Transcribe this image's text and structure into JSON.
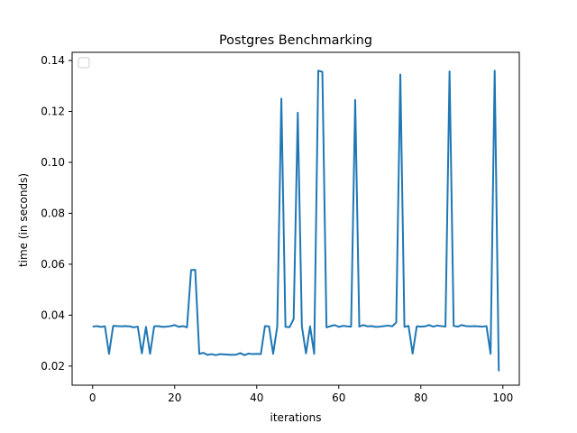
{
  "chart_data": {
    "type": "line",
    "title": "Postgres Benchmarking",
    "xlabel": "iterations",
    "ylabel": "time (in seconds)",
    "xlim": [
      -5,
      104
    ],
    "ylim": [
      0.0125,
      0.1432
    ],
    "x_ticks": [
      0,
      20,
      40,
      60,
      80,
      100
    ],
    "y_ticks": [
      0.02,
      0.04,
      0.06,
      0.08,
      0.1,
      0.12,
      0.14
    ],
    "x_tick_labels": [
      "0",
      "20",
      "40",
      "60",
      "80",
      "100"
    ],
    "y_tick_labels": [
      "0.02",
      "0.04",
      "0.06",
      "0.08",
      "0.10",
      "0.12",
      "0.14"
    ],
    "grid": false,
    "legend": "top-left (empty)",
    "series": [
      {
        "color": "#1f77b4",
        "x": [
          0,
          1,
          2,
          3,
          4,
          5,
          6,
          7,
          8,
          9,
          10,
          11,
          12,
          13,
          14,
          15,
          16,
          17,
          18,
          19,
          20,
          21,
          22,
          23,
          24,
          25,
          26,
          27,
          28,
          29,
          30,
          31,
          32,
          33,
          34,
          35,
          36,
          37,
          38,
          39,
          40,
          41,
          42,
          43,
          44,
          45,
          46,
          47,
          48,
          49,
          50,
          51,
          52,
          53,
          54,
          55,
          56,
          57,
          58,
          59,
          60,
          61,
          62,
          63,
          64,
          65,
          66,
          67,
          68,
          69,
          70,
          71,
          72,
          73,
          74,
          75,
          76,
          77,
          78,
          79,
          80,
          81,
          82,
          83,
          84,
          85,
          86,
          87,
          88,
          89,
          90,
          91,
          92,
          93,
          94,
          95,
          96,
          97,
          98,
          99
        ],
        "y": [
          0.0355,
          0.0357,
          0.0354,
          0.0356,
          0.0248,
          0.0358,
          0.0357,
          0.0356,
          0.0357,
          0.0356,
          0.0352,
          0.0355,
          0.025,
          0.0354,
          0.0248,
          0.0356,
          0.0357,
          0.0354,
          0.0355,
          0.0357,
          0.0361,
          0.0354,
          0.0357,
          0.0352,
          0.0577,
          0.0578,
          0.0248,
          0.0252,
          0.0244,
          0.0247,
          0.0243,
          0.0247,
          0.0246,
          0.0245,
          0.0244,
          0.0245,
          0.0251,
          0.0243,
          0.0249,
          0.0247,
          0.0248,
          0.0247,
          0.0357,
          0.0356,
          0.0248,
          0.0355,
          0.125,
          0.0354,
          0.0353,
          0.0385,
          0.1195,
          0.0356,
          0.025,
          0.0356,
          0.0248,
          0.136,
          0.1355,
          0.0352,
          0.0357,
          0.0361,
          0.0354,
          0.0358,
          0.0356,
          0.0355,
          0.1245,
          0.0355,
          0.0361,
          0.0356,
          0.0357,
          0.0354,
          0.0355,
          0.0357,
          0.0359,
          0.0356,
          0.0371,
          0.1345,
          0.0354,
          0.0358,
          0.0249,
          0.0356,
          0.0355,
          0.0356,
          0.0361,
          0.0355,
          0.0359,
          0.0357,
          0.0355,
          0.1357,
          0.0358,
          0.0355,
          0.0361,
          0.0357,
          0.0356,
          0.0357,
          0.0356,
          0.0355,
          0.0357,
          0.0248,
          0.136,
          0.018
        ]
      }
    ]
  }
}
